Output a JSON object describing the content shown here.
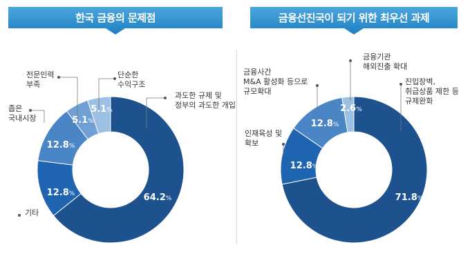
{
  "chart_data": [
    {
      "type": "donut",
      "title": "한국 금융의 문제점",
      "slices": [
        {
          "label": "과도한 규제 및\n정부의 과도한 개입",
          "value": 64.2,
          "color": "#1d528f"
        },
        {
          "label": "기타",
          "value": 12.8,
          "color": "#1e64b1"
        },
        {
          "label": "좁은\n국내시장",
          "value": 12.8,
          "color": "#4a86c6"
        },
        {
          "label": "전문인력\n부족",
          "value": 5.1,
          "color": "#6f9fd4"
        },
        {
          "label": "단순한\n수익구조",
          "value": 5.1,
          "color": "#9cbfe4"
        }
      ]
    },
    {
      "type": "donut",
      "title": "금융선진국이 되기 위한 최우선 과제",
      "slices": [
        {
          "label": "진입장벽,\n취급상품 제한 등\n규제완화",
          "value": 71.8,
          "color": "#1d528f"
        },
        {
          "label": "인재육성 및\n확보",
          "value": 12.8,
          "color": "#1e64b1"
        },
        {
          "label": "금융사간\nM&A 활성화 등으로\n규모확대",
          "value": 12.8,
          "color": "#4a86c6"
        },
        {
          "label": "금융기관\n해외진출 확대",
          "value": 2.6,
          "color": "#9cbfe4"
        }
      ]
    }
  ],
  "value_suffix": "%"
}
